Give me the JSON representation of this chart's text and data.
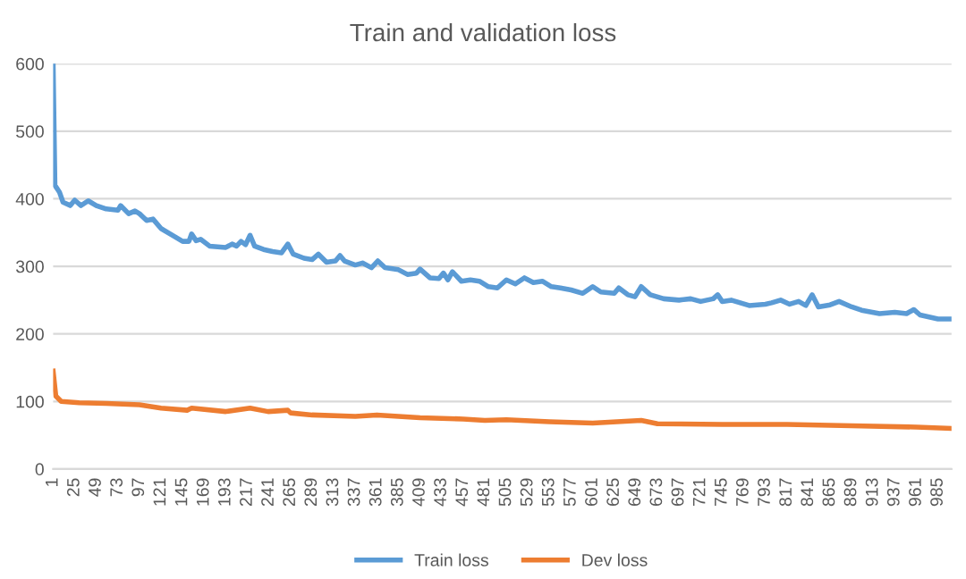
{
  "chart_data": {
    "type": "line",
    "title": "Train and validation loss",
    "legend": "bottom",
    "grid": "y",
    "line_style": "solid",
    "marker": "none",
    "xlim": [
      1,
      1000
    ],
    "xticks": [
      1,
      25,
      49,
      73,
      97,
      121,
      145,
      169,
      193,
      217,
      241,
      265,
      289,
      313,
      337,
      361,
      385,
      409,
      433,
      457,
      481,
      505,
      529,
      553,
      577,
      601,
      625,
      649,
      673,
      697,
      721,
      745,
      769,
      793,
      817,
      841,
      865,
      889,
      913,
      937,
      961,
      985
    ],
    "ylim": [
      0,
      600
    ],
    "yticks": [
      0,
      100,
      200,
      300,
      400,
      500,
      600
    ],
    "series": [
      {
        "name": "Train loss",
        "color": "#5b9bd5",
        "x": [
          1,
          3,
          8,
          12,
          20,
          25,
          32,
          40,
          49,
          60,
          73,
          76,
          85,
          92,
          97,
          105,
          112,
          121,
          135,
          145,
          152,
          155,
          160,
          165,
          175,
          193,
          200,
          205,
          210,
          215,
          220,
          225,
          235,
          245,
          255,
          262,
          268,
          280,
          289,
          296,
          305,
          315,
          320,
          325,
          337,
          345,
          355,
          362,
          370,
          385,
          395,
          405,
          409,
          420,
          430,
          435,
          440,
          445,
          455,
          465,
          475,
          485,
          495,
          505,
          515,
          525,
          535,
          545,
          555,
          565,
          577,
          590,
          601,
          610,
          625,
          630,
          640,
          648,
          655,
          665,
          680,
          697,
          710,
          721,
          735,
          740,
          745,
          755,
          765,
          775,
          793,
          800,
          810,
          820,
          830,
          838,
          845,
          852,
          865,
          875,
          889,
          900,
          920,
          937,
          950,
          958,
          965,
          985,
          1000
        ],
        "values": [
          600,
          420,
          410,
          395,
          390,
          398,
          390,
          397,
          390,
          385,
          383,
          390,
          378,
          382,
          378,
          368,
          370,
          356,
          345,
          337,
          337,
          348,
          338,
          340,
          330,
          328,
          333,
          330,
          337,
          332,
          346,
          330,
          325,
          322,
          320,
          333,
          318,
          312,
          310,
          318,
          306,
          308,
          316,
          308,
          302,
          305,
          298,
          308,
          298,
          295,
          288,
          290,
          296,
          283,
          282,
          290,
          280,
          292,
          278,
          280,
          278,
          270,
          268,
          280,
          274,
          283,
          276,
          278,
          270,
          268,
          265,
          260,
          270,
          262,
          260,
          268,
          258,
          255,
          270,
          258,
          252,
          250,
          252,
          248,
          252,
          258,
          248,
          250,
          246,
          242,
          244,
          246,
          250,
          244,
          248,
          242,
          258,
          240,
          243,
          248,
          240,
          235,
          230,
          232,
          230,
          236,
          228,
          222,
          222
        ]
      },
      {
        "name": "Dev loss",
        "color": "#ed7d31",
        "x": [
          1,
          4,
          10,
          30,
          60,
          97,
          121,
          150,
          155,
          193,
          220,
          240,
          262,
          265,
          289,
          337,
          361,
          409,
          457,
          481,
          505,
          553,
          601,
          655,
          673,
          745,
          817,
          889,
          961,
          1000
        ],
        "values": [
          145,
          108,
          100,
          98,
          97,
          95,
          90,
          87,
          90,
          85,
          90,
          85,
          87,
          83,
          80,
          78,
          80,
          76,
          74,
          72,
          73,
          70,
          68,
          72,
          67,
          66,
          66,
          64,
          62,
          60
        ]
      }
    ]
  }
}
